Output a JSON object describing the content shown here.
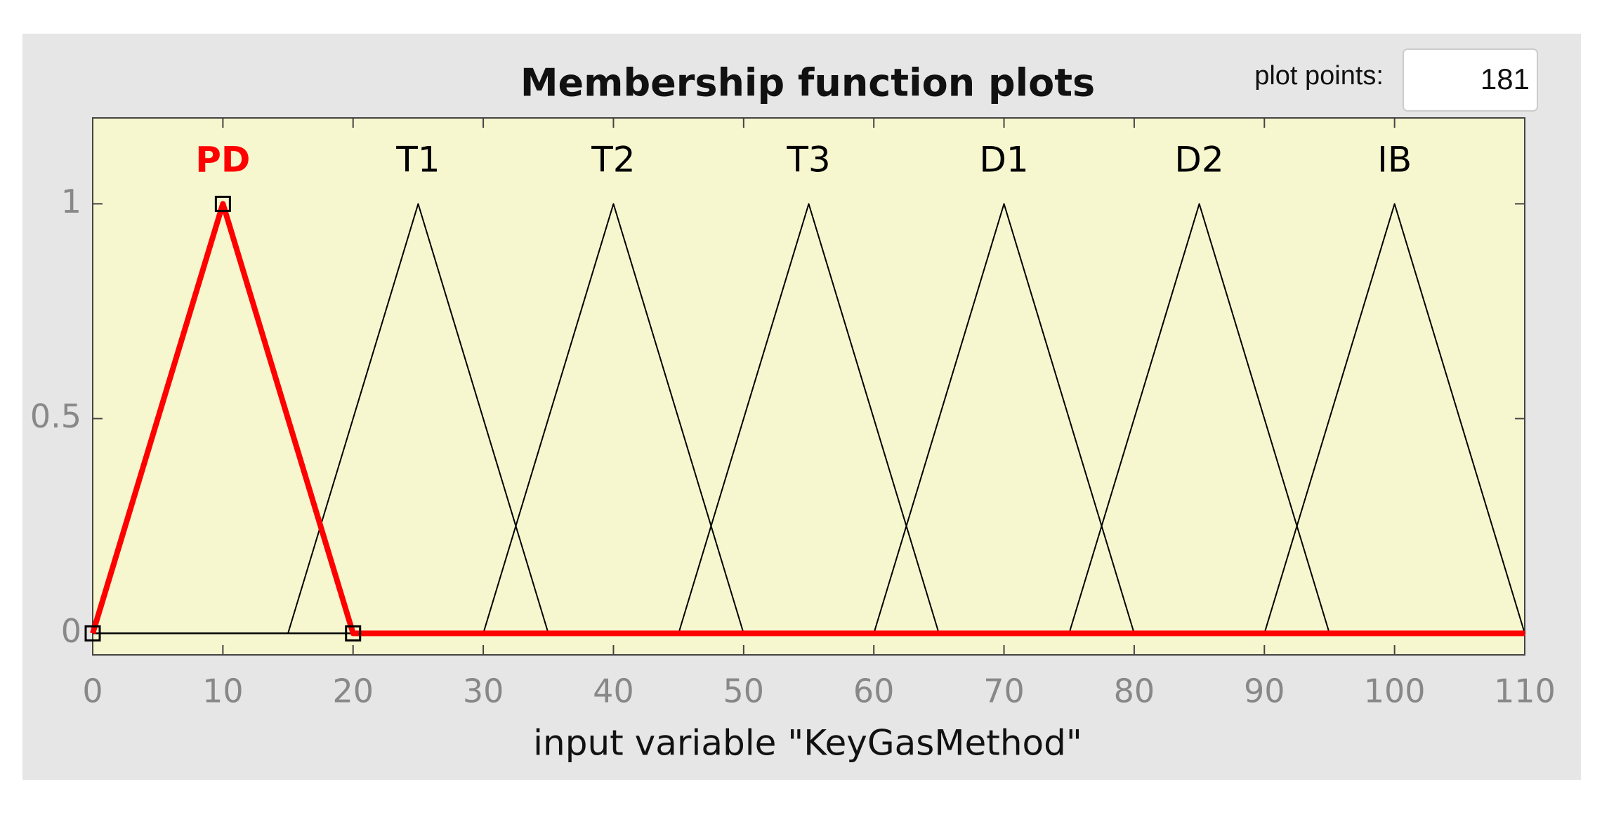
{
  "chart_data": {
    "type": "membership",
    "title": "Membership function plots",
    "plot_points_label": "plot points:",
    "plot_points": 181,
    "xlabel": "input variable \"KeyGasMethod\"",
    "xlim": [
      0,
      110
    ],
    "xticks": [
      0,
      10,
      20,
      30,
      40,
      50,
      60,
      70,
      80,
      90,
      100,
      110
    ],
    "ylim": [
      -0.05,
      1.2
    ],
    "yticks": [
      0,
      0.5,
      1
    ],
    "selected": 0,
    "selected_color": "#ff0000",
    "color": "#000000",
    "series": [
      {
        "name": "PD",
        "params": [
          0,
          10,
          20
        ]
      },
      {
        "name": "T1",
        "params": [
          15,
          25,
          35
        ]
      },
      {
        "name": "T2",
        "params": [
          30,
          40,
          50
        ]
      },
      {
        "name": "T3",
        "params": [
          45,
          55,
          65
        ]
      },
      {
        "name": "D1",
        "params": [
          60,
          70,
          80
        ]
      },
      {
        "name": "D2",
        "params": [
          75,
          85,
          95
        ]
      },
      {
        "name": "IB",
        "params": [
          90,
          100,
          110
        ]
      }
    ]
  }
}
